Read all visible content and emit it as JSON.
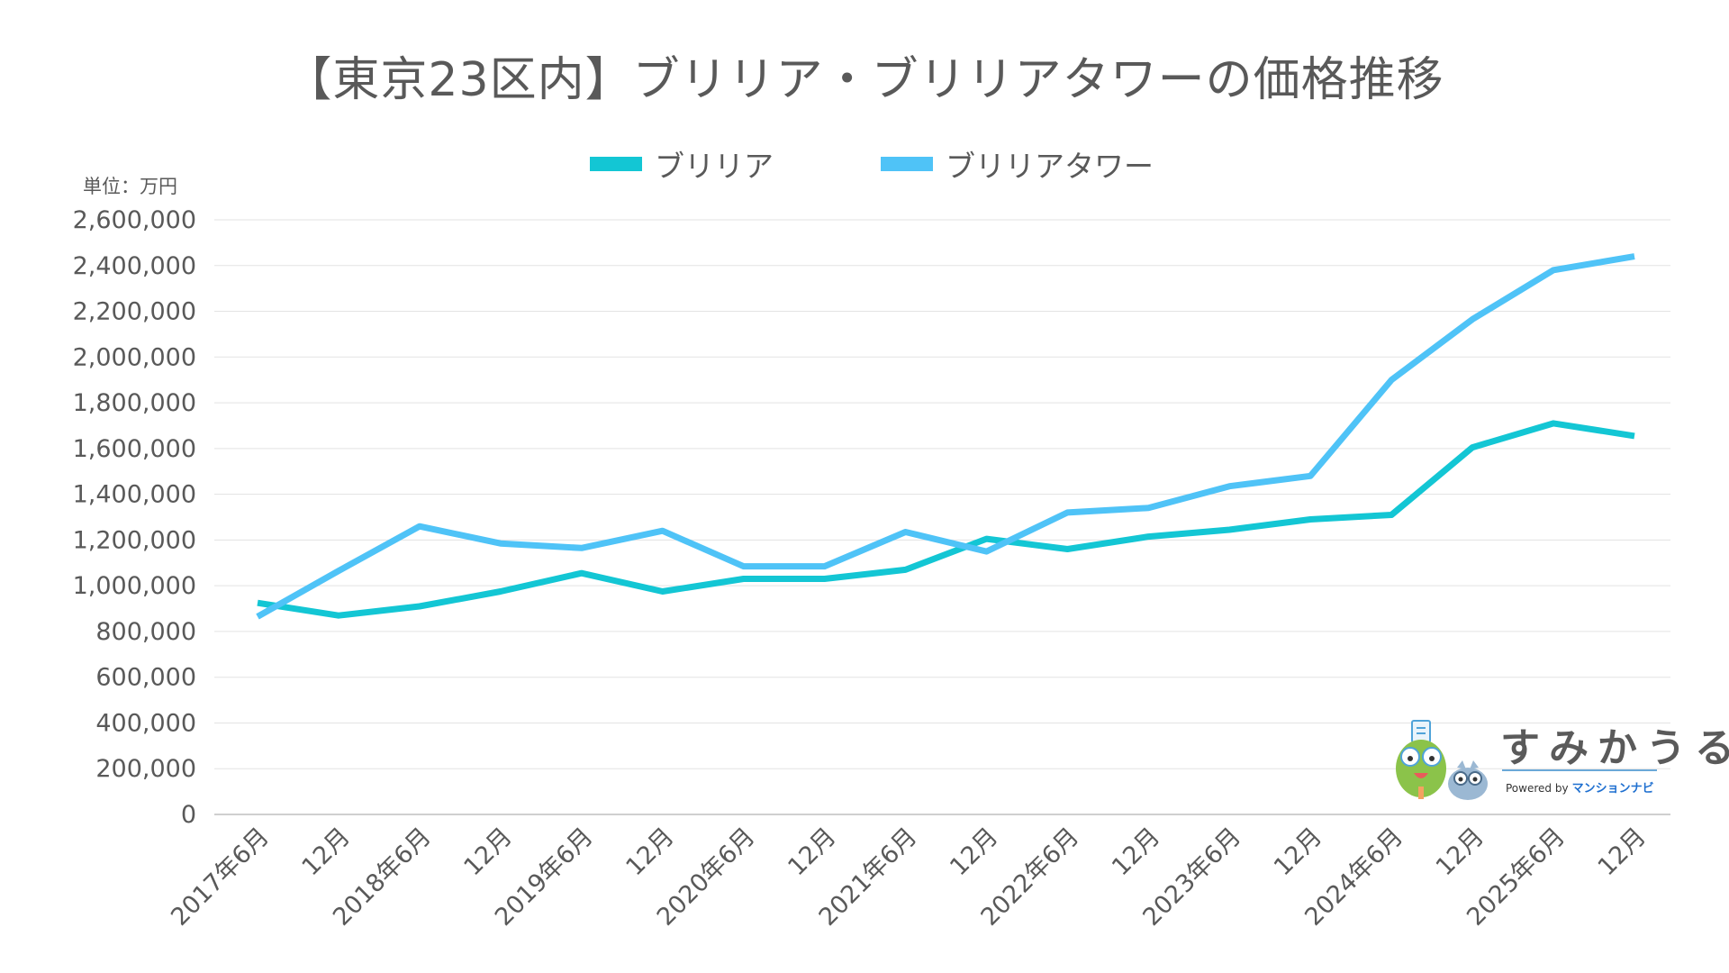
{
  "chart_data": {
    "type": "line",
    "title": "【東京23区内】ブリリア・ブリリアタワーの価格推移",
    "unit_label": "単位：万円",
    "categories": [
      "2017年6月",
      "12月",
      "2018年6月",
      "12月",
      "2019年6月",
      "12月",
      "2020年6月",
      "12月",
      "2021年6月",
      "12月",
      "2022年6月",
      "12月",
      "2023年6月",
      "12月",
      "2024年6月",
      "12月",
      "2025年6月",
      "12月"
    ],
    "ylim": [
      0,
      2600000
    ],
    "yticks": [
      0,
      200000,
      400000,
      600000,
      800000,
      1000000,
      1200000,
      1400000,
      1600000,
      1800000,
      2000000,
      2200000,
      2400000,
      2600000
    ],
    "ytick_labels": [
      "0",
      "200,000",
      "400,000",
      "600,000",
      "800,000",
      "1,000,000",
      "1,200,000",
      "1,400,000",
      "1,600,000",
      "1,800,000",
      "2,000,000",
      "2,200,000",
      "2,400,000",
      "2,600,000"
    ],
    "grid": true,
    "legend_position": "top-center",
    "series": [
      {
        "name": "ブリリア",
        "color": "#13c6d4",
        "values": [
          925000,
          870000,
          910000,
          975000,
          1055000,
          975000,
          1030000,
          1030000,
          1070000,
          1205000,
          1160000,
          1215000,
          1245000,
          1290000,
          1310000,
          1605000,
          1710000,
          1655000
        ]
      },
      {
        "name": "ブリリアタワー",
        "color": "#4fc3f7",
        "values": [
          865000,
          1065000,
          1260000,
          1185000,
          1165000,
          1240000,
          1085000,
          1085000,
          1235000,
          1150000,
          1320000,
          1340000,
          1435000,
          1480000,
          1900000,
          2165000,
          2380000,
          2440000
        ]
      }
    ]
  },
  "logo": {
    "name": "すみかうる",
    "powered_by": "Powered by",
    "brand": "マンションナビ",
    "accent_color": "#8bc34a"
  }
}
